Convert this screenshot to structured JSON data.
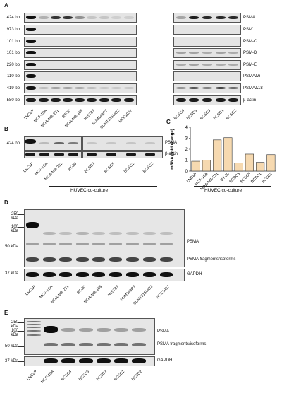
{
  "panels": {
    "A": {
      "label": "A",
      "bp_sizes": [
        "424 bp",
        "973 bp",
        "101 bp",
        "101 bp",
        "220 bp",
        "110 bp",
        "419 bp",
        "580 bp"
      ],
      "band_labels": [
        "PSMA",
        "PSM'",
        "PSM-C",
        "PSM-D",
        "PSM-E",
        "PSMAΔ6",
        "PSMAΔ18",
        "β-actin"
      ],
      "lanes_left": [
        "LNCaP",
        "MCF-10A",
        "MDA-MB-231",
        "BT-20",
        "MDA-MB-468",
        "Hs578T",
        "SUM149PT",
        "SUM1315MO2",
        "HCC1937"
      ],
      "lanes_right": [
        "BCSC4",
        "BCSC5",
        "BCSC3",
        "BCSC1",
        "BCSC2"
      ]
    },
    "B": {
      "label": "B",
      "bp_size": "424 bp",
      "band_labels": [
        "PSMA",
        "β-actin"
      ],
      "lanes": [
        "LNCaP",
        "MCF-10A",
        "MDA-MB-231",
        "BT-20",
        "BCSC3",
        "BCSC5",
        "BCSC1",
        "BCSC2"
      ],
      "caption": "HUVEC co-culture"
    },
    "C": {
      "label": "C",
      "caption": "HUVEC co-culture",
      "chart_data": {
        "type": "bar",
        "categories": [
          "LNCaP",
          "MCF-10A",
          "MDA-MB-231",
          "BT-20",
          "BCSC3",
          "BCSC5",
          "BCSC1",
          "BCSC2"
        ],
        "values": [
          0.9,
          1.0,
          2.85,
          3.05,
          0.75,
          1.55,
          0.8,
          1.5
        ],
        "ylabel": "mRNA (fold change)",
        "yticks": [
          "0",
          "1",
          "2",
          "3",
          "4"
        ],
        "ylim": [
          0,
          4
        ],
        "bar_color": "#f6d9b0"
      }
    },
    "D": {
      "label": "D",
      "mw": [
        "250 kDa",
        "100 kDa",
        "50 kDa",
        "37 kDa"
      ],
      "band_labels": [
        "PSMA",
        "PSMA fragments/isoforms",
        "GAPDH"
      ],
      "lanes": [
        "LNCaP",
        "MCF-10A",
        "MDA-MB-231",
        "BT-20",
        "MDA-MB-468",
        "Hs578T",
        "SUM149PT",
        "SUM1315MO2",
        "HCC1937"
      ]
    },
    "E": {
      "label": "E",
      "mw": [
        "250 kDa",
        "100 kDa",
        "50 kDa",
        "37 kDa"
      ],
      "band_labels": [
        "PSMA",
        "PSMA fragments/isoforms",
        "GAPDH"
      ],
      "lanes": [
        "LNCaP",
        "MCF-10A",
        "BCSC4",
        "BCSC5",
        "BCSC3",
        "BCSC1",
        "BCSC2"
      ]
    }
  }
}
